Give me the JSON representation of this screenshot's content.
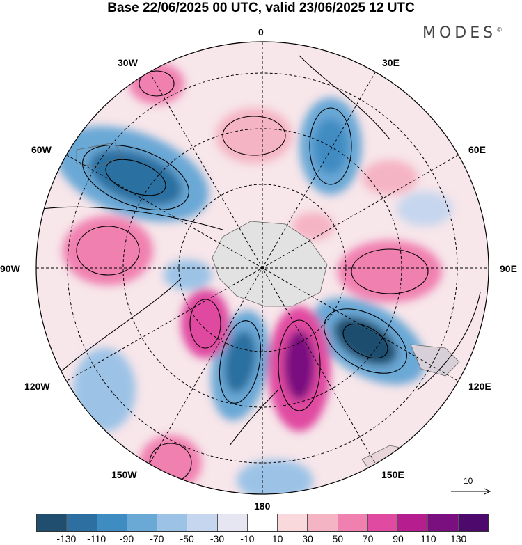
{
  "title": "Base 22/06/2025 00 UTC, valid 23/06/2025 12 UTC",
  "brand": "MODES",
  "brand_mark": "©",
  "longitude_labels": {
    "lon_0": "0",
    "lon_30e": "30E",
    "lon_60e": "60E",
    "lon_90e": "90E",
    "lon_120e": "120E",
    "lon_150e": "150E",
    "lon_180": "180",
    "lon_150w": "150W",
    "lon_120w": "120W",
    "lon_90w": "90W",
    "lon_60w": "60W",
    "lon_30w": "30W"
  },
  "reference_vector": "10",
  "colorbar": {
    "colors": [
      "#1f4e6e",
      "#2c6fa0",
      "#3f8cc2",
      "#6aa8d6",
      "#9cc3e6",
      "#c6d6ee",
      "#e6e6f3",
      "#ffffff",
      "#f9d9dc",
      "#f5b4c4",
      "#f080b0",
      "#e04aa0",
      "#b61e8f",
      "#7a0f80",
      "#4d0a6c"
    ],
    "tick_labels": [
      "-130",
      "-110",
      "-90",
      "-70",
      "-50",
      "-30",
      "-10",
      "10",
      "30",
      "50",
      "70",
      "90",
      "110",
      "130"
    ]
  }
}
